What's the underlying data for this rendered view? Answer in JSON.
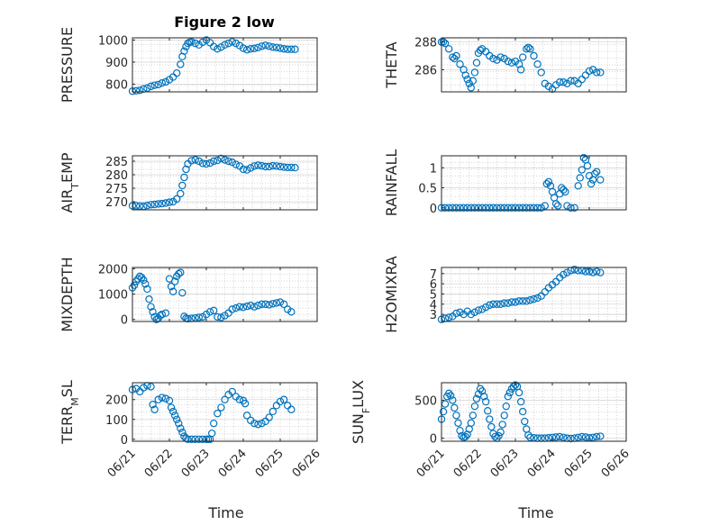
{
  "figure": {
    "title": "Figure 2 low",
    "xlabel": "Time"
  },
  "colors": {
    "marker": "#0072BD",
    "axis": "#262626",
    "grid": "#b0b0b0"
  },
  "chart_data": [
    {
      "id": "pressure",
      "type": "scatter",
      "ylabel": "PRESSURE",
      "ylabel_sub": "",
      "ylim": [
        765,
        1010
      ],
      "yticks": [
        800,
        900,
        1000
      ],
      "ytick_labels": [
        "800",
        "900",
        "1000"
      ],
      "xlim": [
        0,
        5
      ],
      "xticks": [
        0,
        1,
        2,
        3,
        4,
        5
      ],
      "x": [
        0.0,
        0.1,
        0.2,
        0.3,
        0.4,
        0.5,
        0.6,
        0.7,
        0.8,
        0.9,
        1.0,
        1.1,
        1.2,
        1.3,
        1.35,
        1.4,
        1.45,
        1.5,
        1.55,
        1.6,
        1.7,
        1.8,
        1.9,
        2.0,
        2.1,
        2.2,
        2.3,
        2.4,
        2.5,
        2.6,
        2.7,
        2.8,
        2.9,
        3.0,
        3.1,
        3.2,
        3.3,
        3.4,
        3.5,
        3.6,
        3.7,
        3.8,
        3.9,
        4.0,
        4.1,
        4.2,
        4.3,
        4.4
      ],
      "y": [
        768,
        770,
        772,
        778,
        782,
        790,
        795,
        798,
        805,
        810,
        820,
        832,
        850,
        890,
        925,
        950,
        970,
        985,
        990,
        992,
        985,
        978,
        990,
        1000,
        988,
        970,
        960,
        968,
        978,
        985,
        992,
        985,
        975,
        963,
        956,
        960,
        962,
        966,
        972,
        976,
        972,
        968,
        966,
        963,
        960,
        958,
        958,
        958
      ]
    },
    {
      "id": "theta",
      "type": "scatter",
      "ylabel": "THETA",
      "ylabel_sub": "",
      "ylim": [
        284.4,
        288.3
      ],
      "yticks": [
        286,
        288
      ],
      "ytick_labels": [
        "286",
        "288"
      ],
      "xlim": [
        0,
        5
      ],
      "xticks": [
        0,
        1,
        2,
        3,
        4,
        5
      ],
      "x": [
        0.0,
        0.05,
        0.1,
        0.2,
        0.3,
        0.35,
        0.4,
        0.5,
        0.6,
        0.65,
        0.7,
        0.75,
        0.8,
        0.85,
        0.9,
        0.95,
        1.0,
        1.05,
        1.1,
        1.2,
        1.3,
        1.4,
        1.5,
        1.6,
        1.7,
        1.8,
        1.9,
        2.0,
        2.1,
        2.15,
        2.2,
        2.3,
        2.35,
        2.4,
        2.5,
        2.6,
        2.7,
        2.8,
        2.9,
        3.0,
        3.1,
        3.2,
        3.3,
        3.4,
        3.5,
        3.6,
        3.7,
        3.8,
        3.9,
        4.0,
        4.1,
        4.2,
        4.3
      ],
      "y": [
        288.0,
        288.0,
        287.9,
        287.5,
        286.9,
        286.8,
        287.0,
        286.4,
        286.0,
        285.6,
        285.3,
        285.0,
        284.7,
        285.2,
        285.8,
        286.5,
        287.2,
        287.4,
        287.5,
        287.3,
        287.0,
        286.8,
        286.7,
        286.9,
        286.8,
        286.6,
        286.5,
        286.6,
        286.4,
        286.0,
        286.9,
        287.5,
        287.6,
        287.5,
        287.0,
        286.4,
        285.8,
        285.0,
        284.8,
        284.6,
        284.9,
        285.1,
        285.1,
        285.0,
        285.2,
        285.2,
        285.0,
        285.3,
        285.6,
        285.9,
        286.0,
        285.8,
        285.8
      ]
    },
    {
      "id": "air_temp",
      "type": "scatter",
      "ylabel": "AIR",
      "ylabel_sub": "T",
      "ylabel_tail": "EMP",
      "ylim": [
        267,
        287
      ],
      "yticks": [
        270,
        275,
        280,
        285
      ],
      "ytick_labels": [
        "270",
        "275",
        "280",
        "285"
      ],
      "xlim": [
        0,
        5
      ],
      "xticks": [
        0,
        1,
        2,
        3,
        4,
        5
      ],
      "x": [
        0.0,
        0.1,
        0.2,
        0.3,
        0.4,
        0.5,
        0.6,
        0.7,
        0.8,
        0.9,
        1.0,
        1.1,
        1.2,
        1.3,
        1.35,
        1.4,
        1.45,
        1.5,
        1.6,
        1.7,
        1.8,
        1.9,
        2.0,
        2.1,
        2.2,
        2.3,
        2.4,
        2.5,
        2.6,
        2.7,
        2.8,
        2.9,
        3.0,
        3.1,
        3.2,
        3.3,
        3.4,
        3.5,
        3.6,
        3.7,
        3.8,
        3.9,
        4.0,
        4.1,
        4.2,
        4.3,
        4.4
      ],
      "y": [
        268.5,
        268.5,
        268.4,
        268.3,
        268.6,
        268.9,
        269.0,
        269.2,
        269.3,
        269.5,
        269.8,
        270.0,
        271.0,
        273.0,
        276.0,
        279.0,
        282.0,
        284.0,
        285.2,
        285.5,
        285.0,
        284.2,
        284.0,
        284.3,
        285.0,
        285.3,
        286.0,
        285.5,
        285.0,
        284.6,
        283.8,
        283.2,
        282.0,
        281.8,
        282.5,
        283.2,
        283.5,
        283.3,
        283.0,
        283.0,
        283.3,
        283.2,
        283.0,
        282.8,
        282.7,
        282.7,
        282.6
      ]
    },
    {
      "id": "rainfall",
      "type": "scatter",
      "ylabel": "RAINFALL",
      "ylabel_sub": "",
      "ylim": [
        -0.05,
        1.3
      ],
      "yticks": [
        0,
        0.5,
        1
      ],
      "ytick_labels": [
        "0",
        "0.5",
        "1"
      ],
      "xlim": [
        0,
        5
      ],
      "xticks": [
        0,
        1,
        2,
        3,
        4,
        5
      ],
      "x": [
        0.0,
        0.1,
        0.2,
        0.3,
        0.4,
        0.5,
        0.6,
        0.7,
        0.8,
        0.9,
        1.0,
        1.1,
        1.2,
        1.3,
        1.4,
        1.5,
        1.6,
        1.7,
        1.8,
        1.9,
        2.0,
        2.1,
        2.2,
        2.3,
        2.4,
        2.5,
        2.6,
        2.7,
        2.8,
        2.85,
        2.9,
        2.95,
        3.0,
        3.05,
        3.1,
        3.15,
        3.2,
        3.25,
        3.3,
        3.35,
        3.4,
        3.5,
        3.6,
        3.7,
        3.75,
        3.8,
        3.85,
        3.9,
        3.95,
        4.0,
        4.05,
        4.1,
        4.15,
        4.2,
        4.3
      ],
      "y": [
        0,
        0,
        0,
        0,
        0,
        0,
        0,
        0,
        0,
        0,
        0,
        0,
        0,
        0,
        0,
        0,
        0,
        0,
        0,
        0,
        0,
        0,
        0,
        0,
        0,
        0,
        0,
        0,
        0.05,
        0.6,
        0.65,
        0.55,
        0.4,
        0.25,
        0.1,
        0.05,
        0.35,
        0.5,
        0.45,
        0.4,
        0.05,
        0,
        0,
        0.55,
        0.75,
        0.95,
        1.25,
        1.2,
        1.05,
        0.8,
        0.6,
        0.7,
        0.85,
        0.9,
        0.7
      ]
    },
    {
      "id": "mixdepth",
      "type": "scatter",
      "ylabel": "MIXDEPTH",
      "ylabel_sub": "",
      "ylim": [
        -80,
        2050
      ],
      "yticks": [
        0,
        1000,
        2000
      ],
      "ytick_labels": [
        "0",
        "1000",
        "2000"
      ],
      "xlim": [
        0,
        5
      ],
      "xticks": [
        0,
        1,
        2,
        3,
        4,
        5
      ],
      "x": [
        0.0,
        0.05,
        0.1,
        0.15,
        0.2,
        0.25,
        0.3,
        0.35,
        0.4,
        0.45,
        0.5,
        0.55,
        0.6,
        0.65,
        0.7,
        0.75,
        0.8,
        0.9,
        1.0,
        1.05,
        1.1,
        1.15,
        1.2,
        1.25,
        1.3,
        1.35,
        1.4,
        1.45,
        1.5,
        1.6,
        1.7,
        1.8,
        1.9,
        2.0,
        2.1,
        2.2,
        2.3,
        2.4,
        2.5,
        2.6,
        2.7,
        2.8,
        2.9,
        3.0,
        3.1,
        3.2,
        3.3,
        3.4,
        3.5,
        3.6,
        3.7,
        3.8,
        3.9,
        4.0,
        4.1,
        4.2,
        4.3
      ],
      "y": [
        1250,
        1350,
        1500,
        1600,
        1700,
        1650,
        1550,
        1400,
        1200,
        800,
        500,
        300,
        100,
        0,
        50,
        150,
        200,
        250,
        1600,
        1300,
        1100,
        1500,
        1700,
        1800,
        1850,
        1050,
        120,
        50,
        30,
        40,
        60,
        80,
        100,
        200,
        300,
        350,
        100,
        80,
        150,
        250,
        400,
        450,
        500,
        480,
        520,
        550,
        500,
        550,
        600,
        600,
        580,
        620,
        650,
        680,
        600,
        400,
        300
      ]
    },
    {
      "id": "h2omixra",
      "type": "scatter",
      "ylabel": "H2OMIXRA",
      "ylabel_sub": "",
      "ylim": [
        2.3,
        7.6
      ],
      "yticks": [
        3,
        4,
        5,
        6,
        7
      ],
      "ytick_labels": [
        "3",
        "4",
        "5",
        "6",
        "7"
      ],
      "xlim": [
        0,
        5
      ],
      "xticks": [
        0,
        1,
        2,
        3,
        4,
        5
      ],
      "x": [
        0.0,
        0.1,
        0.2,
        0.3,
        0.4,
        0.5,
        0.6,
        0.7,
        0.8,
        0.9,
        1.0,
        1.1,
        1.2,
        1.3,
        1.4,
        1.5,
        1.6,
        1.7,
        1.8,
        1.9,
        2.0,
        2.1,
        2.2,
        2.3,
        2.4,
        2.5,
        2.6,
        2.7,
        2.8,
        2.9,
        3.0,
        3.1,
        3.2,
        3.3,
        3.4,
        3.5,
        3.6,
        3.7,
        3.8,
        3.9,
        4.0,
        4.1,
        4.2,
        4.3
      ],
      "y": [
        2.5,
        2.6,
        2.7,
        2.8,
        3.1,
        3.2,
        3.0,
        3.3,
        3.0,
        3.2,
        3.4,
        3.5,
        3.7,
        3.9,
        4.0,
        4.0,
        4.0,
        4.1,
        4.1,
        4.2,
        4.2,
        4.3,
        4.3,
        4.3,
        4.4,
        4.5,
        4.6,
        4.8,
        5.2,
        5.6,
        5.9,
        6.2,
        6.6,
        6.9,
        7.1,
        7.3,
        7.4,
        7.3,
        7.3,
        7.2,
        7.2,
        7.1,
        7.2,
        7.1
      ]
    },
    {
      "id": "terr_msl",
      "type": "scatter",
      "ylabel": "TERR",
      "ylabel_sub": "M",
      "ylabel_tail": "SL",
      "ylim": [
        -10,
        285
      ],
      "yticks": [
        0,
        100,
        200
      ],
      "ytick_labels": [
        "0",
        "100",
        "200"
      ],
      "xlim": [
        0,
        5
      ],
      "xticks": [
        0,
        1,
        2,
        3,
        4,
        5
      ],
      "x": [
        0.0,
        0.1,
        0.2,
        0.3,
        0.4,
        0.5,
        0.55,
        0.6,
        0.7,
        0.8,
        0.9,
        1.0,
        1.05,
        1.1,
        1.15,
        1.2,
        1.25,
        1.3,
        1.35,
        1.4,
        1.45,
        1.5,
        1.6,
        1.7,
        1.8,
        1.9,
        2.0,
        2.05,
        2.1,
        2.15,
        2.2,
        2.3,
        2.4,
        2.5,
        2.6,
        2.7,
        2.8,
        2.9,
        3.0,
        3.05,
        3.1,
        3.2,
        3.3,
        3.4,
        3.5,
        3.6,
        3.7,
        3.8,
        3.9,
        4.0,
        4.1,
        4.2,
        4.3
      ],
      "y": [
        250,
        255,
        240,
        260,
        270,
        265,
        175,
        150,
        200,
        210,
        205,
        195,
        160,
        140,
        120,
        100,
        80,
        55,
        35,
        15,
        5,
        0,
        0,
        0,
        0,
        0,
        0,
        0,
        0,
        30,
        80,
        130,
        160,
        200,
        225,
        240,
        215,
        200,
        195,
        180,
        120,
        95,
        80,
        75,
        80,
        90,
        110,
        140,
        170,
        190,
        200,
        170,
        150
      ]
    },
    {
      "id": "sun_flux",
      "type": "scatter",
      "ylabel": "SUN",
      "ylabel_sub": "F",
      "ylabel_tail": "LUX",
      "ylim": [
        -40,
        730
      ],
      "yticks": [
        0,
        500
      ],
      "ytick_labels": [
        "0",
        "500"
      ],
      "xlim": [
        0,
        5
      ],
      "xticks": [
        0,
        1,
        2,
        3,
        4,
        5
      ],
      "x": [
        0.0,
        0.05,
        0.1,
        0.15,
        0.2,
        0.25,
        0.3,
        0.35,
        0.4,
        0.45,
        0.5,
        0.55,
        0.6,
        0.65,
        0.7,
        0.75,
        0.8,
        0.85,
        0.9,
        0.95,
        1.0,
        1.05,
        1.1,
        1.15,
        1.2,
        1.25,
        1.3,
        1.35,
        1.4,
        1.45,
        1.5,
        1.55,
        1.6,
        1.65,
        1.7,
        1.75,
        1.8,
        1.85,
        1.9,
        1.95,
        2.0,
        2.05,
        2.1,
        2.15,
        2.2,
        2.25,
        2.3,
        2.35,
        2.4,
        2.5,
        2.6,
        2.7,
        2.8,
        2.9,
        3.0,
        3.1,
        3.2,
        3.3,
        3.4,
        3.5,
        3.6,
        3.7,
        3.8,
        3.9,
        4.0,
        4.1,
        4.2,
        4.3
      ],
      "y": [
        250,
        350,
        450,
        550,
        590,
        560,
        500,
        400,
        300,
        200,
        100,
        30,
        10,
        20,
        50,
        120,
        200,
        300,
        420,
        520,
        580,
        650,
        620,
        550,
        480,
        360,
        250,
        150,
        60,
        20,
        0,
        30,
        80,
        180,
        300,
        420,
        550,
        600,
        650,
        680,
        700,
        680,
        600,
        480,
        350,
        220,
        120,
        40,
        10,
        5,
        0,
        0,
        0,
        5,
        10,
        15,
        20,
        10,
        0,
        -5,
        0,
        10,
        20,
        15,
        5,
        10,
        20,
        25
      ]
    }
  ],
  "xaxis": {
    "tick_labels": [
      "06/21",
      "06/22",
      "06/23",
      "06/24",
      "06/25",
      "06/26"
    ]
  }
}
